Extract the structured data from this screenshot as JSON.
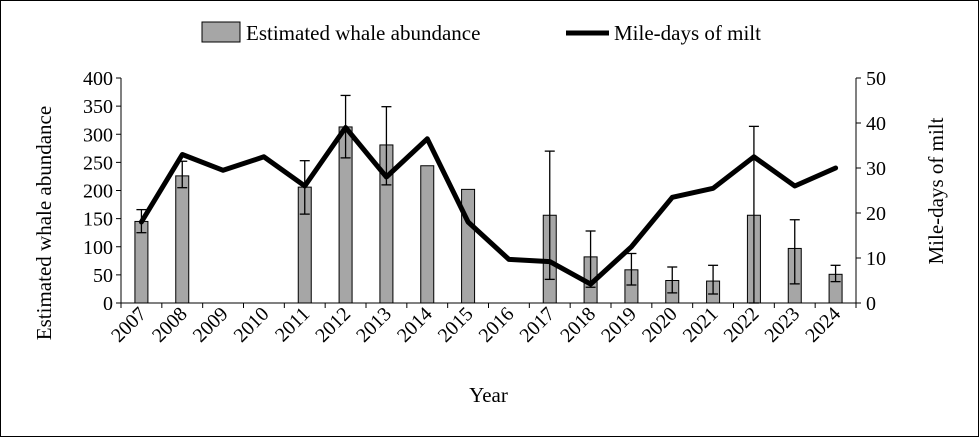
{
  "chart_data": {
    "type": "bar+line",
    "title": "",
    "xlabel": "Year",
    "ylabel": "Estimated whale abundance",
    "y2label": "Mile-days of milt",
    "ylim": [
      0,
      400
    ],
    "y2lim": [
      0,
      50
    ],
    "yticks": [
      "0",
      "50",
      "100",
      "150",
      "200",
      "250",
      "300",
      "350",
      "400"
    ],
    "y2ticks": [
      "0",
      "10",
      "20",
      "30",
      "40",
      "50"
    ],
    "categories": [
      "2007",
      "2008",
      "2009",
      "2010",
      "2011",
      "2012",
      "2013",
      "2014",
      "2015",
      "2016",
      "2017",
      "2018",
      "2019",
      "2020",
      "2021",
      "2022",
      "2023",
      "2024"
    ],
    "series": [
      {
        "name": "Estimated whale abundance",
        "kind": "bar",
        "axis": "left",
        "color": "#a6a6a6",
        "values": [
          145,
          226,
          null,
          null,
          206,
          313,
          281,
          244,
          202,
          null,
          156,
          82,
          59,
          40,
          39,
          156,
          97,
          51
        ],
        "error_lower": [
          125,
          205,
          null,
          null,
          158,
          258,
          210,
          null,
          null,
          null,
          42,
          28,
          32,
          18,
          16,
          0,
          34,
          38
        ],
        "error_upper": [
          166,
          252,
          null,
          null,
          253,
          369,
          349,
          null,
          null,
          null,
          270,
          128,
          88,
          64,
          67,
          314,
          148,
          67
        ]
      },
      {
        "name": "Mile-days of milt",
        "kind": "line",
        "axis": "right",
        "color": "#000000",
        "values": [
          18,
          33,
          29.5,
          32.5,
          26,
          39,
          28,
          36.5,
          18,
          9.7,
          9.2,
          4.2,
          12.5,
          23.5,
          25.5,
          32.5,
          26,
          30
        ]
      }
    ],
    "legend_position": "top-center",
    "grid": false
  }
}
